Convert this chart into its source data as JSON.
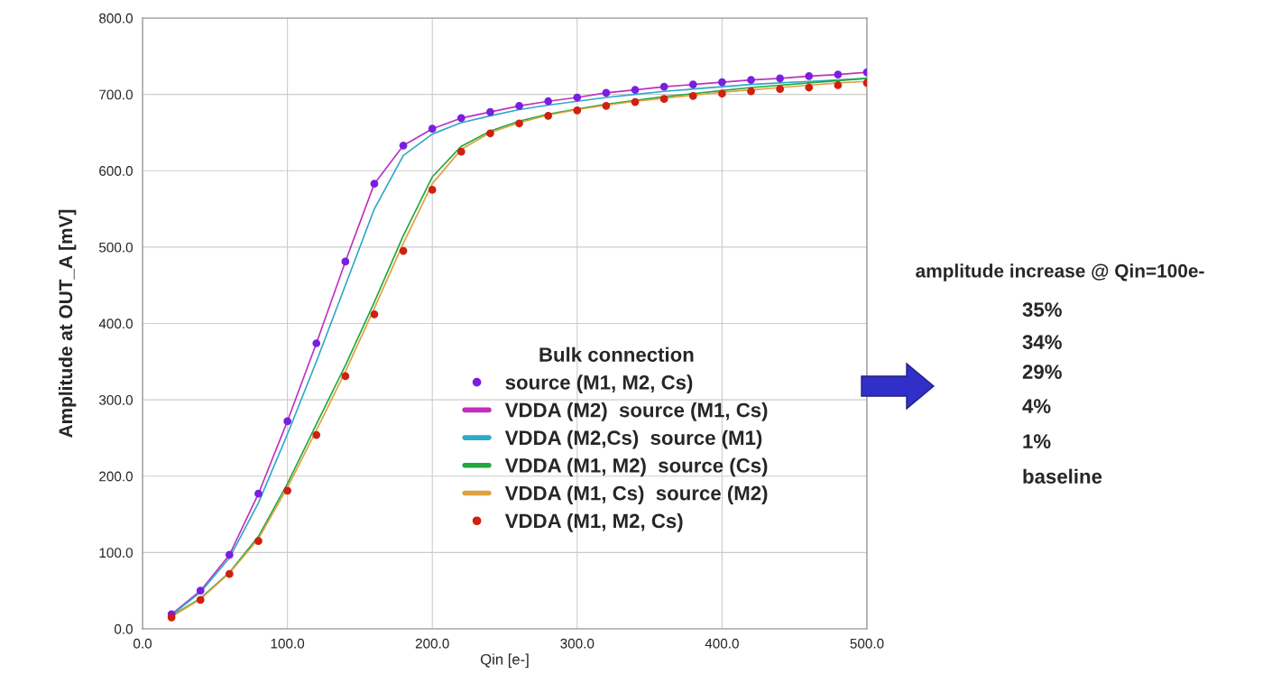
{
  "chart_data": {
    "type": "line",
    "xlabel": "Qin [e-]",
    "ylabel": "Amplitude at OUT_A [mV]",
    "legend_title": "Bulk connection",
    "x": [
      20,
      40,
      60,
      80,
      100,
      120,
      140,
      160,
      180,
      200,
      220,
      240,
      260,
      280,
      300,
      320,
      340,
      360,
      380,
      400,
      420,
      440,
      460,
      480,
      500
    ],
    "series": [
      {
        "name": "source (M1, M2, Cs)",
        "type": "scatter",
        "marker": "circle",
        "color": "#7a1fe0",
        "values": [
          19,
          50,
          97,
          177,
          272,
          374,
          481,
          583,
          633,
          655,
          669,
          677,
          685,
          691,
          696,
          702,
          706,
          710,
          713,
          716,
          719,
          721,
          724,
          726,
          729
        ]
      },
      {
        "name": "VDDA (M2)  source (M1, Cs)",
        "color": "#c030c0",
        "values": [
          19,
          50,
          97,
          177,
          272,
          374,
          481,
          583,
          633,
          655,
          669,
          677,
          685,
          691,
          696,
          702,
          706,
          710,
          713,
          716,
          719,
          721,
          724,
          726,
          729
        ]
      },
      {
        "name": "VDDA (M2,Cs)  source (M1)",
        "color": "#30a8c8",
        "values": [
          18,
          48,
          93,
          165,
          255,
          350,
          450,
          550,
          620,
          648,
          663,
          672,
          680,
          686,
          691,
          696,
          700,
          704,
          707,
          710,
          713,
          715,
          717,
          719,
          721
        ]
      },
      {
        "name": "VDDA (M1, M2)  source (Cs)",
        "color": "#20a840",
        "values": [
          17,
          40,
          74,
          121,
          190,
          268,
          345,
          428,
          515,
          592,
          632,
          652,
          665,
          674,
          681,
          687,
          692,
          697,
          701,
          705,
          709,
          712,
          715,
          718,
          721
        ]
      },
      {
        "name": "VDDA (M1, Cs)  source (M2)",
        "color": "#e0a040",
        "values": [
          16,
          39,
          73,
          118,
          185,
          260,
          337,
          420,
          505,
          583,
          628,
          650,
          663,
          673,
          680,
          686,
          691,
          695,
          699,
          703,
          706,
          709,
          712,
          715,
          717
        ]
      },
      {
        "name": "VDDA (M1, M2, Cs)",
        "type": "scatter",
        "marker": "circle",
        "color": "#d02010",
        "values": [
          15,
          38,
          72,
          115,
          181,
          254,
          331,
          412,
          495,
          575,
          625,
          649,
          662,
          672,
          679,
          685,
          690,
          694,
          698,
          701,
          704,
          707,
          709,
          712,
          715
        ]
      }
    ],
    "xlim": [
      0,
      500
    ],
    "ylim": [
      0,
      800
    ],
    "xticks": [
      {
        "value": 0,
        "label": "0.0"
      },
      {
        "value": 100,
        "label": "100.0"
      },
      {
        "value": 200,
        "label": "200.0"
      },
      {
        "value": 300,
        "label": "300.0"
      },
      {
        "value": 400,
        "label": "400.0"
      },
      {
        "value": 500,
        "label": "500.0"
      }
    ],
    "yticks": [
      {
        "value": 0,
        "label": "0.0"
      },
      {
        "value": 100,
        "label": "100.0"
      },
      {
        "value": 200,
        "label": "200.0"
      },
      {
        "value": 300,
        "label": "300.0"
      },
      {
        "value": 400,
        "label": "400.0"
      },
      {
        "value": 500,
        "label": "500.0"
      },
      {
        "value": 600,
        "label": "600.0"
      },
      {
        "value": 700,
        "label": "700.0"
      },
      {
        "value": 800,
        "label": "800.0"
      }
    ],
    "grid": true,
    "legend": "right",
    "annotations": [
      "amplitude increase @ Qin=100e-",
      "35%",
      "34%",
      "29%",
      "4%",
      "1%",
      "baseline"
    ]
  }
}
